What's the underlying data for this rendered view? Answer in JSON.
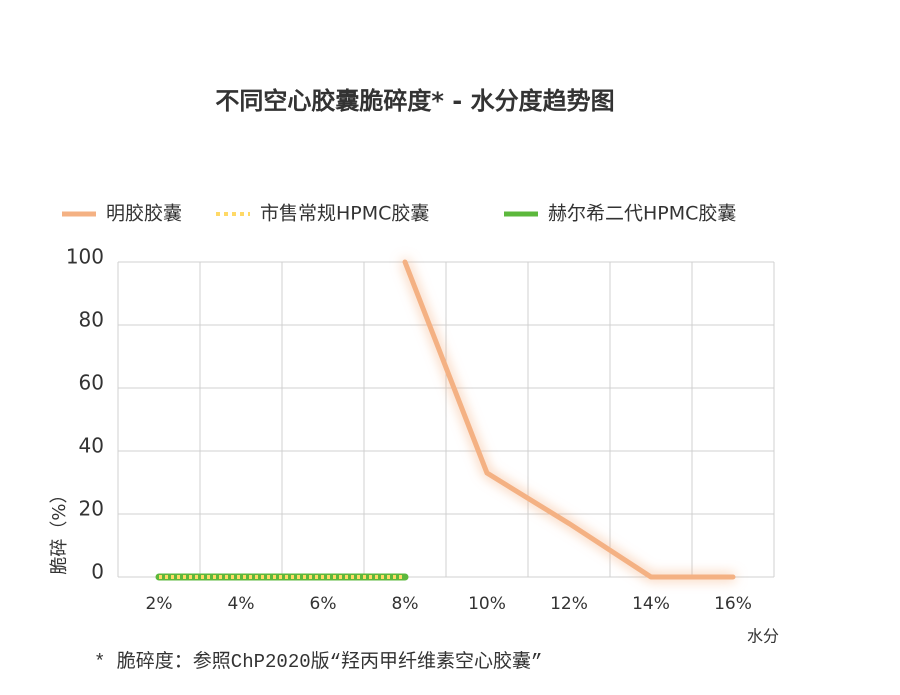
{
  "chart_data": {
    "type": "line",
    "title": "不同空心胶囊脆碎度* - 水分度趋势图",
    "y_label": "脆碎（%）",
    "x_label": "水分",
    "footnote": "* 脆碎度：参照ChP2020版“羟丙甲纤维素空心胶囊”",
    "categories": [
      "2%",
      "4%",
      "6%",
      "8%",
      "10%",
      "12%",
      "14%",
      "16%"
    ],
    "series": [
      {
        "name": "明胶胶囊",
        "color": "#f4b183",
        "values": [
          null,
          null,
          null,
          100,
          33,
          17,
          0,
          0
        ]
      },
      {
        "name": "市售常规HPMC胶囊",
        "color": "#ffd966",
        "values": [
          0,
          0,
          0,
          0,
          null,
          null,
          null,
          null
        ]
      },
      {
        "name": "赫尔希二代HPMC胶囊",
        "color": "#5cb83c",
        "values": [
          0,
          0,
          0,
          0,
          null,
          null,
          null,
          null
        ]
      }
    ],
    "ylim": [
      0,
      100
    ],
    "yticks": [
      0,
      20,
      40,
      60,
      80,
      100
    ],
    "grid": true
  }
}
